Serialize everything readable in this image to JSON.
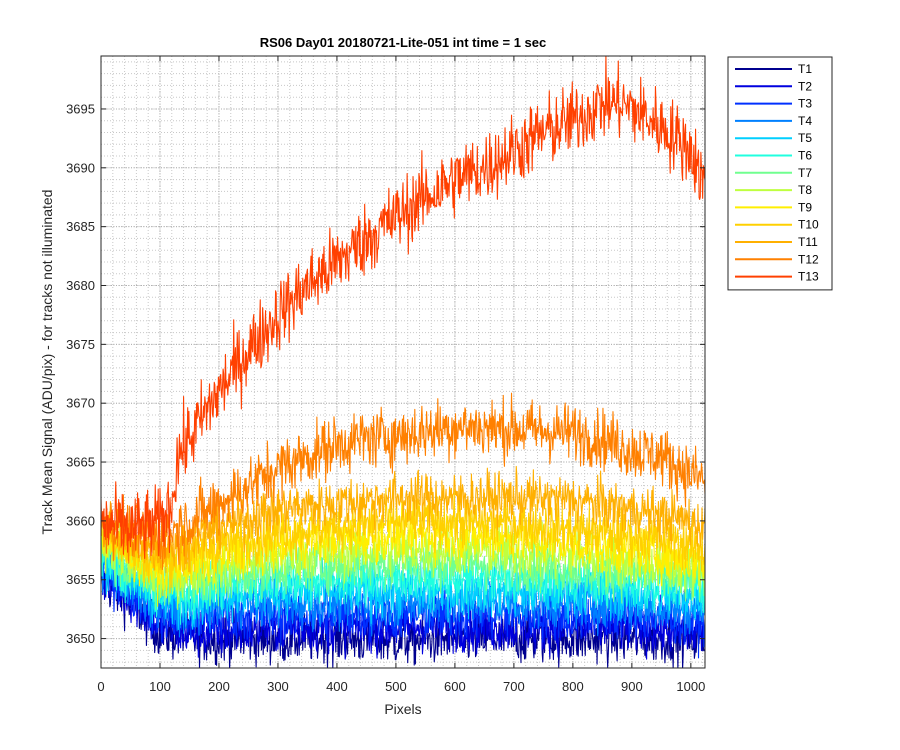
{
  "chart_data": {
    "type": "line",
    "title": "RS06 Day01 20180721-Lite-051 int time = 1 sec",
    "xlabel": "Pixels",
    "ylabel": "Track Mean Signal (ADU/pix) - for tracks not illuminated",
    "xlim": [
      0,
      1024
    ],
    "ylim": [
      3647.5,
      3699.5
    ],
    "x_ticks": [
      0,
      100,
      200,
      300,
      400,
      500,
      600,
      700,
      800,
      900,
      1000
    ],
    "y_ticks": [
      3650,
      3655,
      3660,
      3665,
      3670,
      3675,
      3680,
      3685,
      3690,
      3695
    ],
    "grid": true,
    "minor_grid": true,
    "legend_position": "outside-top-right",
    "series": [
      {
        "name": "T1",
        "color": "#00008F",
        "x": [
          0,
          50,
          100,
          150,
          200,
          300,
          400,
          500,
          600,
          700,
          800,
          900,
          1000,
          1024
        ],
        "y": [
          3655,
          3653,
          3650.5,
          3650,
          3650,
          3650,
          3650,
          3649.8,
          3650,
          3650,
          3650,
          3650,
          3650,
          3650
        ],
        "noise": 1.5
      },
      {
        "name": "T2",
        "color": "#0000DF",
        "x": [
          0,
          50,
          100,
          150,
          200,
          300,
          400,
          500,
          600,
          700,
          800,
          900,
          1000,
          1024
        ],
        "y": [
          3655.5,
          3653.5,
          3651,
          3650.5,
          3650.5,
          3651,
          3651,
          3651,
          3651,
          3651,
          3651,
          3651,
          3650.5,
          3650.5
        ],
        "noise": 1.5
      },
      {
        "name": "T3",
        "color": "#0030FF",
        "x": [
          0,
          50,
          100,
          150,
          200,
          300,
          400,
          500,
          600,
          700,
          800,
          900,
          1000,
          1024
        ],
        "y": [
          3656,
          3654,
          3652,
          3651.5,
          3652,
          3652,
          3652,
          3652,
          3652,
          3652,
          3652,
          3652,
          3651.5,
          3651.5
        ],
        "noise": 1.5
      },
      {
        "name": "T4",
        "color": "#0080FF",
        "x": [
          0,
          50,
          100,
          150,
          200,
          300,
          400,
          500,
          600,
          700,
          800,
          900,
          1000,
          1024
        ],
        "y": [
          3656.5,
          3654.5,
          3652.5,
          3652.5,
          3653,
          3653,
          3653,
          3653,
          3653,
          3653,
          3653,
          3652.8,
          3652.5,
          3652.5
        ],
        "noise": 1.5
      },
      {
        "name": "T5",
        "color": "#00CFFF",
        "x": [
          0,
          50,
          100,
          150,
          200,
          300,
          400,
          500,
          600,
          700,
          800,
          900,
          1000,
          1024
        ],
        "y": [
          3657,
          3655,
          3653.2,
          3653.2,
          3653.8,
          3654,
          3654,
          3654,
          3654,
          3654,
          3654,
          3653.8,
          3653.5,
          3653.5
        ],
        "noise": 1.5
      },
      {
        "name": "T6",
        "color": "#20FFDF",
        "x": [
          0,
          50,
          100,
          150,
          200,
          300,
          400,
          500,
          600,
          700,
          800,
          900,
          1000,
          1024
        ],
        "y": [
          3657.5,
          3655.5,
          3654,
          3654,
          3654.5,
          3655,
          3655,
          3655.2,
          3655.2,
          3655,
          3655,
          3654.8,
          3654.5,
          3654.5
        ],
        "noise": 1.5
      },
      {
        "name": "T7",
        "color": "#70FF8F",
        "x": [
          0,
          50,
          100,
          150,
          200,
          300,
          400,
          500,
          600,
          700,
          800,
          900,
          1000,
          1024
        ],
        "y": [
          3658,
          3656,
          3654.5,
          3654.8,
          3655.2,
          3656,
          3656.2,
          3656.5,
          3656.5,
          3656.3,
          3656,
          3655.5,
          3655,
          3655
        ],
        "noise": 1.5
      },
      {
        "name": "T8",
        "color": "#BFFF40",
        "x": [
          0,
          50,
          100,
          150,
          200,
          300,
          400,
          500,
          600,
          700,
          800,
          900,
          1000,
          1024
        ],
        "y": [
          3658.5,
          3656.5,
          3655,
          3655.5,
          3656,
          3657,
          3657.3,
          3657.5,
          3657.5,
          3657.3,
          3657,
          3656.5,
          3655.8,
          3655.5
        ],
        "noise": 1.5
      },
      {
        "name": "T9",
        "color": "#FFEF00",
        "x": [
          0,
          50,
          100,
          150,
          200,
          300,
          400,
          500,
          600,
          700,
          800,
          900,
          1000,
          1024
        ],
        "y": [
          3659,
          3657,
          3655.8,
          3656.3,
          3657,
          3658,
          3658.5,
          3658.8,
          3658.8,
          3658.5,
          3658,
          3657.5,
          3656.8,
          3656.5
        ],
        "noise": 1.5
      },
      {
        "name": "T10",
        "color": "#FFD000",
        "x": [
          0,
          50,
          100,
          150,
          200,
          300,
          400,
          500,
          600,
          700,
          800,
          900,
          1000,
          1024
        ],
        "y": [
          3659.5,
          3657.5,
          3656.5,
          3657.2,
          3658,
          3659,
          3659.5,
          3660,
          3660,
          3659.8,
          3659.3,
          3658.8,
          3658,
          3657.5
        ],
        "noise": 1.5
      },
      {
        "name": "T11",
        "color": "#FFB000",
        "x": [
          0,
          50,
          100,
          150,
          200,
          300,
          400,
          500,
          600,
          700,
          800,
          900,
          1000,
          1024
        ],
        "y": [
          3660,
          3658.5,
          3657.5,
          3658.5,
          3659.5,
          3661,
          3661.5,
          3662,
          3662,
          3662,
          3661.8,
          3661,
          3660,
          3659.5
        ],
        "noise": 1.5
      },
      {
        "name": "T12",
        "color": "#FF8000",
        "x": [
          0,
          50,
          100,
          150,
          200,
          250,
          300,
          400,
          450,
          500,
          600,
          700,
          800,
          850,
          900,
          950,
          1000,
          1024
        ],
        "y": [
          3660,
          3659,
          3658.5,
          3660,
          3661.5,
          3663,
          3664.5,
          3666.5,
          3667,
          3667.2,
          3668,
          3667.8,
          3667.5,
          3667,
          3666,
          3665.5,
          3664,
          3663.5
        ],
        "noise": 1.8
      },
      {
        "name": "T13",
        "color": "#FF4000",
        "x": [
          0,
          50,
          100,
          120,
          130,
          150,
          200,
          250,
          300,
          350,
          400,
          450,
          500,
          550,
          600,
          650,
          700,
          750,
          800,
          850,
          880,
          900,
          950,
          1000,
          1024
        ],
        "y": [
          3659.8,
          3659.3,
          3659.8,
          3661.5,
          3665.5,
          3667,
          3671,
          3674.5,
          3677.5,
          3680,
          3682,
          3684,
          3685.8,
          3687.5,
          3689,
          3690,
          3691.5,
          3693,
          3694,
          3695.5,
          3695.5,
          3695,
          3693.5,
          3691.5,
          3688.5
        ],
        "noise": 2.2
      }
    ]
  }
}
